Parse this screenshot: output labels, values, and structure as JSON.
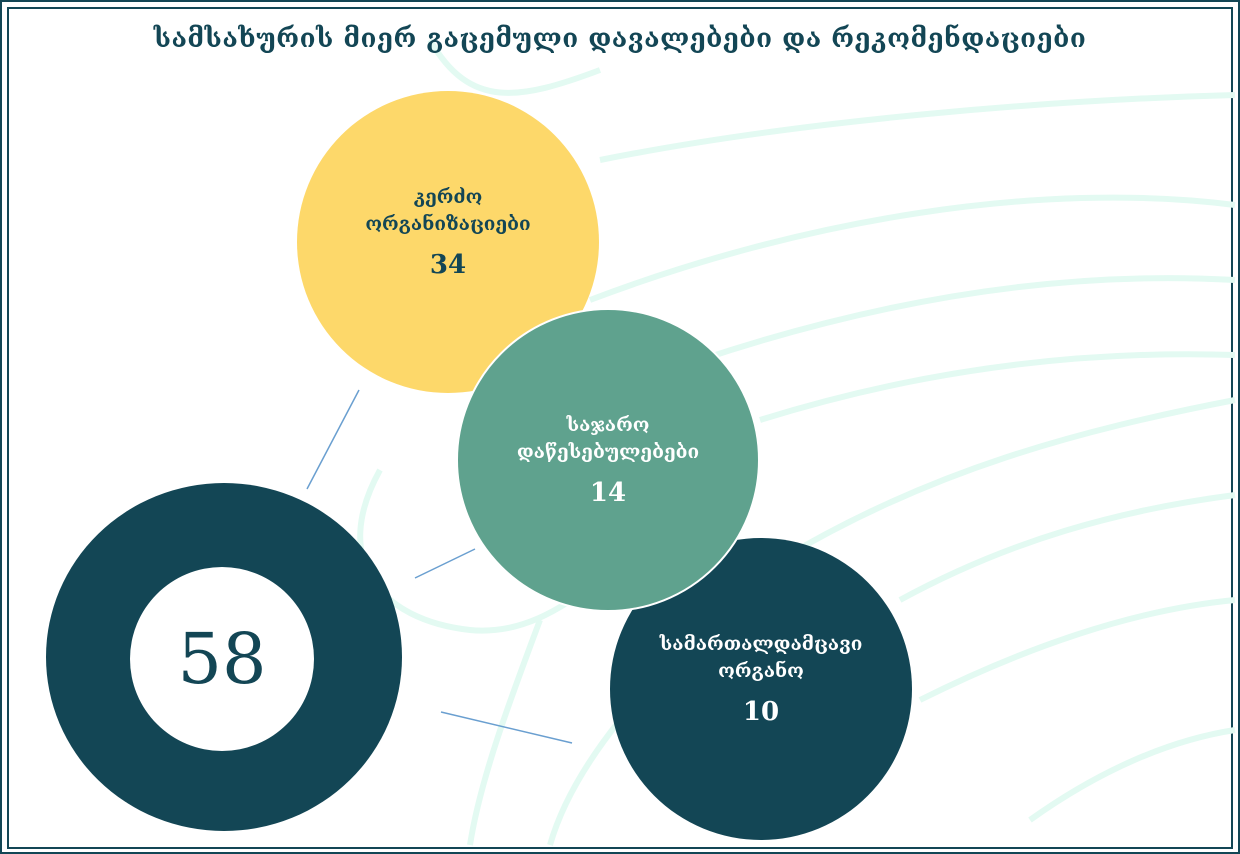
{
  "title": "სამსახურის მიერ გაცემული დავალებები და რეკომენდაციები",
  "total": "58",
  "categories": [
    {
      "label": "კერძო ორგანიზაციები",
      "value": "34",
      "color": "#fdd86a"
    },
    {
      "label": "საჯარო დაწესებულებები",
      "value": "14",
      "color": "#5fa28e"
    },
    {
      "label": "სამართალდამცავი ორგანო",
      "value": "10",
      "color": "#134655"
    }
  ],
  "colors": {
    "frame": "#134655",
    "donut": "#134655",
    "arc_accent": "#e3faf2",
    "connector": "#6a9fd0"
  }
}
